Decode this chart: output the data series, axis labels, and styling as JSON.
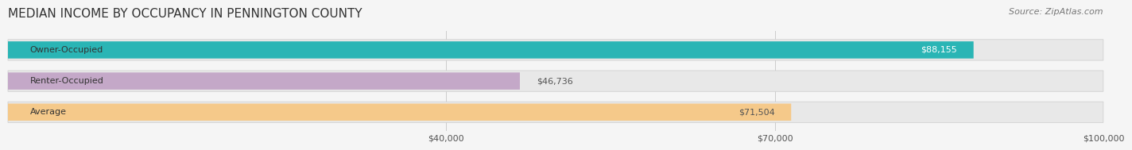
{
  "title": "MEDIAN INCOME BY OCCUPANCY IN PENNINGTON COUNTY",
  "source": "Source: ZipAtlas.com",
  "categories": [
    "Owner-Occupied",
    "Renter-Occupied",
    "Average"
  ],
  "values": [
    88155,
    46736,
    71504
  ],
  "bar_colors": [
    "#2ab5b5",
    "#c4a8c8",
    "#f5c98a"
  ],
  "bar_labels": [
    "$88,155",
    "$46,736",
    "$71,504"
  ],
  "label_colors": [
    "#ffffff",
    "#555555",
    "#555555"
  ],
  "xlim": [
    0,
    100000
  ],
  "xticks": [
    40000,
    70000,
    100000
  ],
  "xtick_labels": [
    "$40,000",
    "$70,000",
    "$100,000"
  ],
  "title_fontsize": 11,
  "source_fontsize": 8,
  "bar_label_fontsize": 8,
  "category_fontsize": 8,
  "tick_fontsize": 8,
  "background_color": "#f5f5f5",
  "bar_bg_color": "#e8e8e8",
  "bar_height": 0.55
}
